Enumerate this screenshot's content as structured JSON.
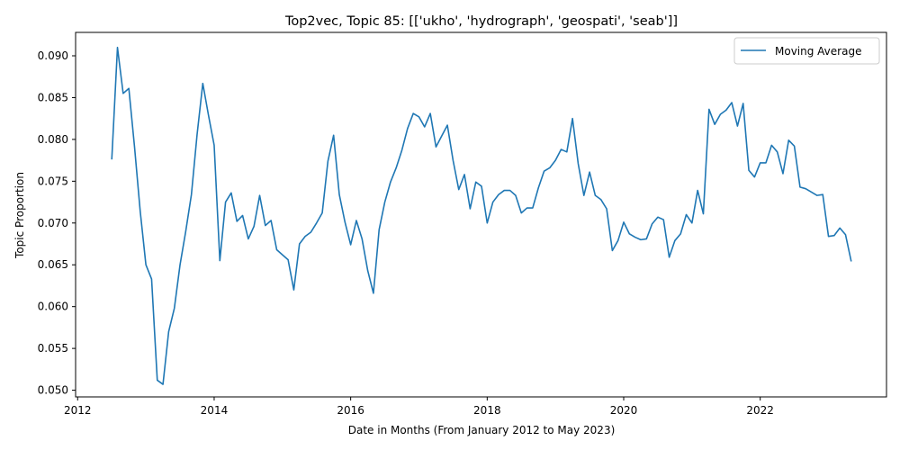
{
  "chart_data": {
    "type": "line",
    "title": "Top2vec, Topic 85: [['ukho', 'hydrograph', 'geospati', 'seab']]",
    "xlabel": "Date in Months (From January 2012 to May 2023)",
    "ylabel": "Topic Proportion",
    "xlim": [
      2011.97,
      2023.85
    ],
    "ylim": [
      0.0492,
      0.0928
    ],
    "x_ticks": [
      2012,
      2014,
      2016,
      2018,
      2020,
      2022
    ],
    "x_tick_labels": [
      "2012",
      "2014",
      "2016",
      "2018",
      "2020",
      "2022"
    ],
    "y_ticks": [
      0.05,
      0.055,
      0.06,
      0.065,
      0.07,
      0.075,
      0.08,
      0.085,
      0.09
    ],
    "y_tick_labels": [
      "0.050",
      "0.055",
      "0.060",
      "0.065",
      "0.070",
      "0.075",
      "0.080",
      "0.085",
      "0.090"
    ],
    "grid": false,
    "legend_position": "top-right",
    "series": [
      {
        "name": "Moving Average",
        "color": "#1f77b4",
        "x": [
          "2012-07",
          "2012-08",
          "2012-09",
          "2012-10",
          "2012-11",
          "2012-12",
          "2013-01",
          "2013-02",
          "2013-03",
          "2013-04",
          "2013-05",
          "2013-06",
          "2013-07",
          "2013-08",
          "2013-09",
          "2013-10",
          "2013-11",
          "2013-12",
          "2014-01",
          "2014-02",
          "2014-03",
          "2014-04",
          "2014-05",
          "2014-06",
          "2014-07",
          "2014-08",
          "2014-09",
          "2014-10",
          "2014-11",
          "2014-12",
          "2015-01",
          "2015-02",
          "2015-03",
          "2015-04",
          "2015-05",
          "2015-06",
          "2015-07",
          "2015-08",
          "2015-09",
          "2015-10",
          "2015-11",
          "2015-12",
          "2016-01",
          "2016-02",
          "2016-03",
          "2016-04",
          "2016-05",
          "2016-06",
          "2016-07",
          "2016-08",
          "2016-09",
          "2016-10",
          "2016-11",
          "2016-12",
          "2017-01",
          "2017-02",
          "2017-03",
          "2017-04",
          "2017-05",
          "2017-06",
          "2017-07",
          "2017-08",
          "2017-09",
          "2017-10",
          "2017-11",
          "2017-12",
          "2018-01",
          "2018-02",
          "2018-03",
          "2018-04",
          "2018-05",
          "2018-06",
          "2018-07",
          "2018-08",
          "2018-09",
          "2018-10",
          "2018-11",
          "2018-12",
          "2019-01",
          "2019-02",
          "2019-03",
          "2019-04",
          "2019-05",
          "2019-06",
          "2019-07",
          "2019-08",
          "2019-09",
          "2019-10",
          "2019-11",
          "2019-12",
          "2020-01",
          "2020-02",
          "2020-03",
          "2020-04",
          "2020-05",
          "2020-06",
          "2020-07",
          "2020-08",
          "2020-09",
          "2020-10",
          "2020-11",
          "2020-12",
          "2021-01",
          "2021-02",
          "2021-03",
          "2021-04",
          "2021-05",
          "2021-06",
          "2021-07",
          "2021-08",
          "2021-09",
          "2021-10",
          "2021-11",
          "2021-12",
          "2022-01",
          "2022-02",
          "2022-03",
          "2022-04",
          "2022-05",
          "2022-06",
          "2022-07",
          "2022-08",
          "2022-09",
          "2022-10",
          "2022-11",
          "2022-12",
          "2023-01",
          "2023-02",
          "2023-03",
          "2023-04",
          "2023-05"
        ],
        "values": [
          0.0776,
          0.091,
          0.0855,
          0.0861,
          0.0791,
          0.0714,
          0.065,
          0.0633,
          0.0512,
          0.0507,
          0.057,
          0.0598,
          0.065,
          0.069,
          0.0734,
          0.0806,
          0.0867,
          0.0829,
          0.0793,
          0.0655,
          0.0725,
          0.0736,
          0.0702,
          0.0709,
          0.0681,
          0.0696,
          0.0733,
          0.0697,
          0.0703,
          0.0668,
          0.0662,
          0.0656,
          0.062,
          0.0675,
          0.0684,
          0.0689,
          0.07,
          0.0712,
          0.0774,
          0.0805,
          0.0734,
          0.0701,
          0.0674,
          0.0703,
          0.0681,
          0.0643,
          0.0616,
          0.0692,
          0.0725,
          0.0749,
          0.0766,
          0.0787,
          0.0813,
          0.0831,
          0.0827,
          0.0815,
          0.0831,
          0.0791,
          0.0804,
          0.0817,
          0.0775,
          0.074,
          0.0758,
          0.0717,
          0.0749,
          0.0744,
          0.07,
          0.0725,
          0.0734,
          0.0739,
          0.0739,
          0.0733,
          0.0712,
          0.0718,
          0.0718,
          0.0742,
          0.0762,
          0.0766,
          0.0775,
          0.0788,
          0.0785,
          0.0825,
          0.0771,
          0.0733,
          0.0761,
          0.0733,
          0.0728,
          0.0717,
          0.0667,
          0.0679,
          0.0701,
          0.0687,
          0.0683,
          0.068,
          0.0681,
          0.0699,
          0.0707,
          0.0704,
          0.0659,
          0.0679,
          0.0687,
          0.071,
          0.07,
          0.0739,
          0.0711,
          0.0836,
          0.0818,
          0.083,
          0.0835,
          0.0844,
          0.0816,
          0.0843,
          0.0763,
          0.0755,
          0.0772,
          0.0772,
          0.0793,
          0.0785,
          0.0759,
          0.0799,
          0.0792,
          0.0743,
          0.0741,
          0.0737,
          0.0733,
          0.0734,
          0.0684,
          0.0685,
          0.0694,
          0.0686,
          0.0654
        ]
      }
    ]
  }
}
